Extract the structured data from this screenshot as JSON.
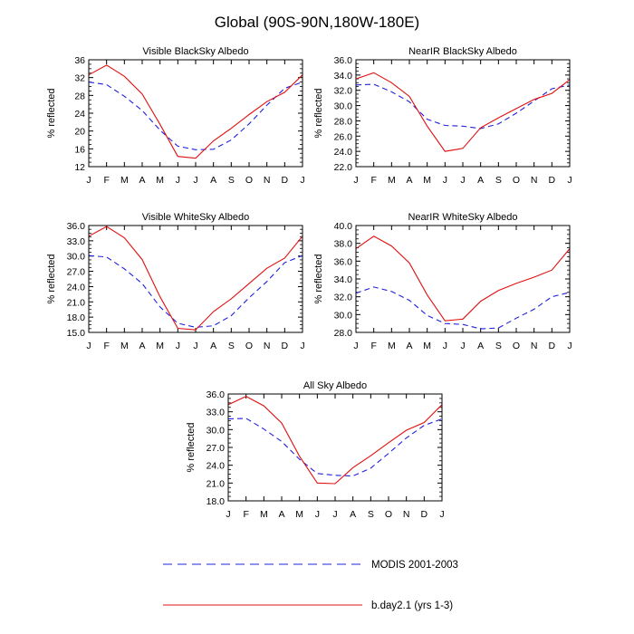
{
  "title": "Global (90S-90N,180W-180E)",
  "colors": {
    "modis": "#2020e0",
    "model": "#e01010",
    "axis": "#000000"
  },
  "legend": {
    "modis_label": "MODIS 2001-2003",
    "model_label": "b.day2.1 (yrs 1-3)"
  },
  "chart_data": [
    {
      "type": "line",
      "title": "Visible BlackSky Albedo",
      "ylabel": "% reflected",
      "x": [
        "J",
        "F",
        "M",
        "A",
        "M",
        "J",
        "J",
        "A",
        "S",
        "O",
        "N",
        "D",
        "J"
      ],
      "ylim": [
        12,
        36
      ],
      "yticks": [
        "12",
        "16",
        "20",
        "24",
        "28",
        "32",
        "36"
      ],
      "series": [
        {
          "name": "MODIS 2001-2003",
          "style": "dashed",
          "values": [
            31.0,
            30.4,
            27.8,
            24.6,
            20.2,
            16.6,
            15.8,
            15.9,
            18.0,
            21.6,
            25.8,
            29.6,
            31.0
          ]
        },
        {
          "name": "b.day2.1 (yrs 1-3)",
          "style": "solid",
          "values": [
            32.6,
            34.8,
            32.3,
            28.3,
            21.5,
            14.3,
            13.9,
            17.8,
            20.6,
            23.7,
            26.6,
            28.7,
            32.6
          ]
        }
      ]
    },
    {
      "type": "line",
      "title": "NearIR BlackSky Albedo",
      "ylabel": "% reflected",
      "x": [
        "J",
        "F",
        "M",
        "A",
        "M",
        "J",
        "J",
        "A",
        "S",
        "O",
        "N",
        "D",
        "J"
      ],
      "ylim": [
        22,
        36
      ],
      "yticks": [
        "22.0",
        "24.0",
        "26.0",
        "28.0",
        "30.0",
        "32.0",
        "34.0",
        "36.0"
      ],
      "series": [
        {
          "name": "MODIS 2001-2003",
          "style": "dashed",
          "values": [
            32.7,
            32.8,
            31.8,
            30.5,
            28.2,
            27.4,
            27.3,
            27.0,
            27.6,
            29.0,
            30.6,
            32.2,
            32.7
          ]
        },
        {
          "name": "b.day2.1 (yrs 1-3)",
          "style": "solid",
          "values": [
            33.5,
            34.3,
            33.0,
            31.2,
            27.3,
            24.0,
            24.4,
            27.1,
            28.4,
            29.6,
            30.8,
            31.6,
            33.4
          ]
        }
      ]
    },
    {
      "type": "line",
      "title": "Visible WhiteSky Albedo",
      "ylabel": "% reflected",
      "x": [
        "J",
        "F",
        "M",
        "A",
        "M",
        "J",
        "J",
        "A",
        "S",
        "O",
        "N",
        "D",
        "J"
      ],
      "ylim": [
        15,
        36
      ],
      "yticks": [
        "15.0",
        "18.0",
        "21.0",
        "24.0",
        "27.0",
        "30.0",
        "33.0",
        "36.0"
      ],
      "series": [
        {
          "name": "MODIS 2001-2003",
          "style": "dashed",
          "values": [
            30.1,
            29.8,
            27.5,
            24.6,
            20.0,
            16.8,
            16.0,
            16.3,
            18.3,
            21.8,
            25.0,
            28.7,
            30.1
          ]
        },
        {
          "name": "b.day2.1 (yrs 1-3)",
          "style": "solid",
          "values": [
            33.9,
            35.8,
            33.6,
            29.3,
            22.0,
            15.8,
            15.5,
            19.1,
            21.6,
            24.6,
            27.6,
            29.6,
            33.9
          ]
        }
      ]
    },
    {
      "type": "line",
      "title": "NearIR WhiteSky Albedo",
      "ylabel": "% reflected",
      "x": [
        "J",
        "F",
        "M",
        "A",
        "M",
        "J",
        "J",
        "A",
        "S",
        "O",
        "N",
        "D",
        "J"
      ],
      "ylim": [
        28,
        40
      ],
      "yticks": [
        "28.0",
        "30.0",
        "32.0",
        "34.0",
        "36.0",
        "38.0",
        "40.0"
      ],
      "series": [
        {
          "name": "MODIS 2001-2003",
          "style": "dashed",
          "values": [
            32.4,
            33.1,
            32.6,
            31.6,
            29.9,
            29.0,
            28.9,
            28.4,
            28.5,
            29.6,
            30.6,
            32.0,
            32.5
          ]
        },
        {
          "name": "b.day2.1 (yrs 1-3)",
          "style": "solid",
          "values": [
            37.4,
            38.8,
            37.7,
            35.8,
            32.2,
            29.3,
            29.5,
            31.5,
            32.7,
            33.5,
            34.2,
            35.0,
            37.4
          ]
        }
      ]
    },
    {
      "type": "line",
      "title": "All Sky Albedo",
      "ylabel": "% reflected",
      "x": [
        "J",
        "F",
        "M",
        "A",
        "M",
        "J",
        "J",
        "A",
        "S",
        "O",
        "N",
        "D",
        "J"
      ],
      "ylim": [
        18,
        36
      ],
      "yticks": [
        "18.0",
        "21.0",
        "24.0",
        "27.0",
        "30.0",
        "33.0",
        "36.0"
      ],
      "series": [
        {
          "name": "MODIS 2001-2003",
          "style": "dashed",
          "values": [
            31.8,
            31.9,
            30.1,
            28.0,
            25.0,
            22.6,
            22.3,
            22.2,
            23.5,
            26.0,
            28.6,
            30.7,
            31.8
          ]
        },
        {
          "name": "b.day2.1 (yrs 1-3)",
          "style": "solid",
          "values": [
            34.2,
            35.6,
            34.0,
            31.1,
            25.5,
            21.0,
            20.9,
            23.6,
            25.6,
            27.8,
            29.9,
            31.2,
            34.2
          ]
        }
      ]
    }
  ]
}
